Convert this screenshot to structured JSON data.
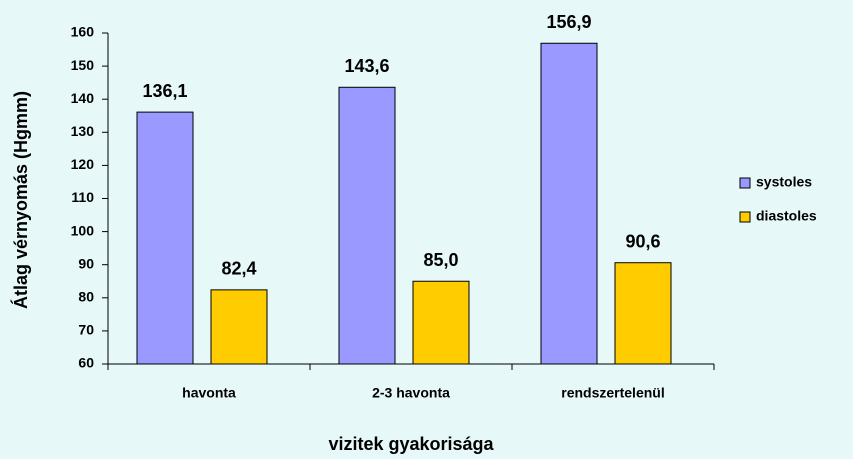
{
  "chart_data": {
    "type": "bar",
    "categories": [
      "havonta",
      "2-3 havonta",
      "rendszertelenül"
    ],
    "series": [
      {
        "name": "systoles",
        "color": "#9999ff",
        "values": [
          136.1,
          143.6,
          156.9
        ],
        "value_labels": [
          "136,1",
          "143,6",
          "156,9"
        ]
      },
      {
        "name": "diastoles",
        "color": "#ffcc00",
        "values": [
          82.4,
          85.0,
          90.6
        ],
        "value_labels": [
          "82,4",
          "85,0",
          "90,6"
        ]
      }
    ],
    "y_label": "Átlag vérnyomás (Hgmm)",
    "x_label": "vizitek gyakorisága",
    "ylim": [
      60,
      160
    ],
    "yticks": [
      60,
      70,
      80,
      90,
      100,
      110,
      120,
      130,
      140,
      150,
      160
    ],
    "legend": "right"
  }
}
